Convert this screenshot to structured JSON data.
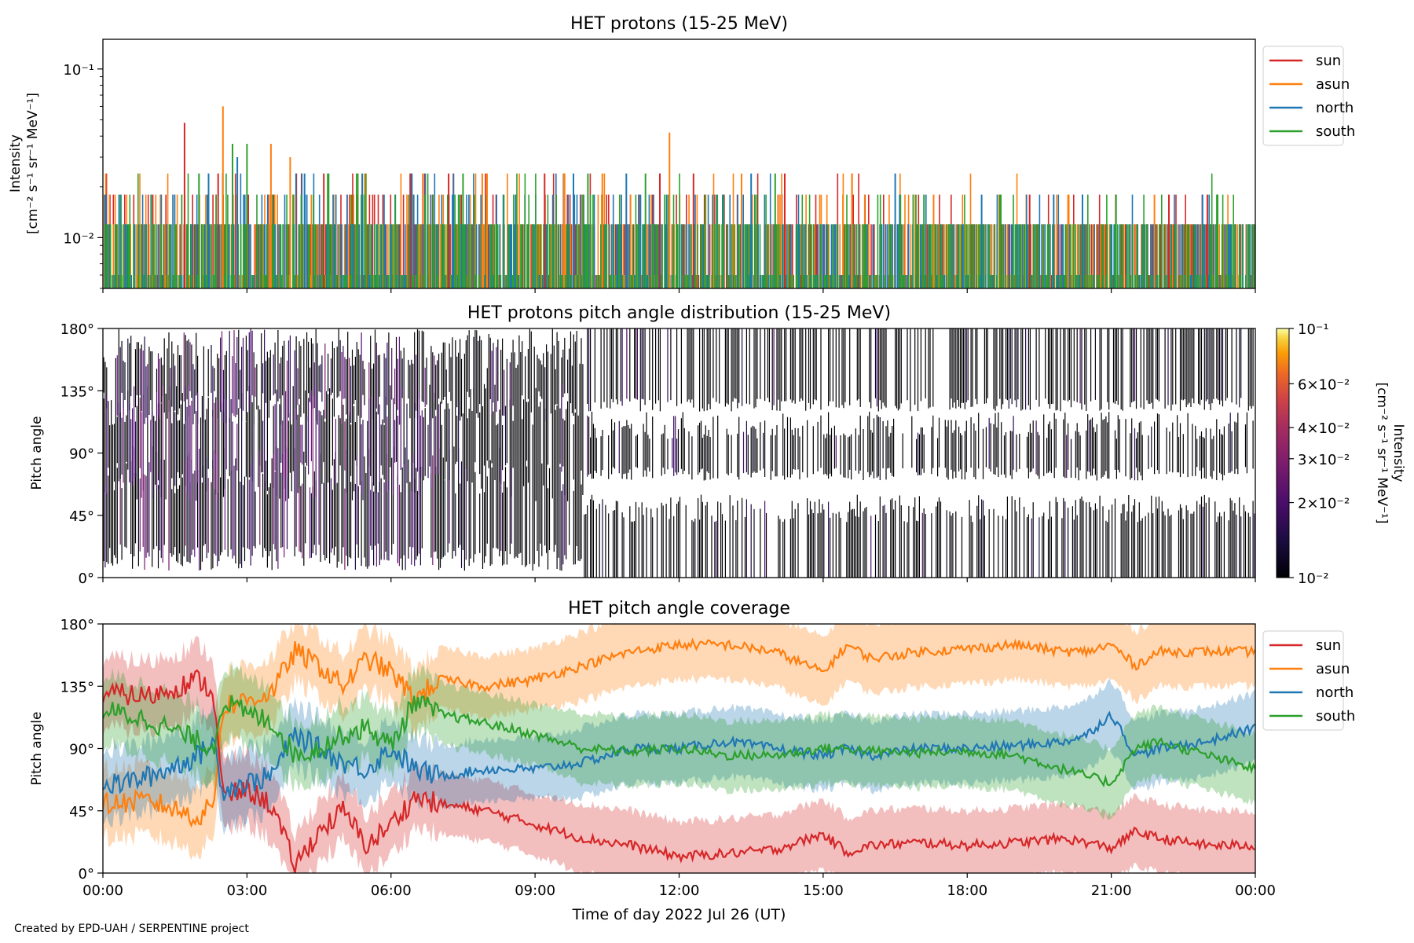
{
  "footer": {
    "credit": "Created by EPD-UAH / SERPENTINE project"
  },
  "chart_data": [
    {
      "type": "line",
      "title": "HET protons (15-25 MeV)",
      "ylabel_line1": "Intensity",
      "ylabel_line2": "[cm⁻² s⁻¹ sr⁻¹ MeV⁻¹]",
      "yscale": "log",
      "ylim": [
        0.005,
        0.15
      ],
      "yticks": [
        {
          "value": 0.01,
          "label": "10⁻²"
        },
        {
          "value": 0.1,
          "label": "10⁻¹"
        }
      ],
      "legend_position": "top-right-outside",
      "x_range_hours": [
        0,
        24
      ],
      "levels": [
        0.006,
        0.012,
        0.018,
        0.024,
        0.03
      ],
      "series": [
        {
          "name": "sun",
          "color": "#d62728",
          "spikes": [
            [
              1.7,
              0.048
            ],
            [
              2.4,
              0.024
            ],
            [
              4.6,
              0.024
            ],
            [
              6.4,
              0.024
            ],
            [
              7.2,
              0.024
            ],
            [
              9.2,
              0.024
            ],
            [
              11.6,
              0.024
            ],
            [
              12.3,
              0.024
            ],
            [
              14.2,
              0.024
            ],
            [
              15.6,
              0.024
            ],
            [
              19.3,
              0.018
            ],
            [
              22.2,
              0.018
            ],
            [
              23.0,
              0.018
            ]
          ]
        },
        {
          "name": "asun",
          "color": "#ff7f0e",
          "spikes": [
            [
              2.5,
              0.06
            ],
            [
              3.5,
              0.036
            ],
            [
              3.9,
              0.03
            ],
            [
              7.9,
              0.024
            ],
            [
              8.0,
              0.024
            ],
            [
              9.6,
              0.024
            ],
            [
              10.4,
              0.024
            ],
            [
              11.8,
              0.042
            ],
            [
              13.3,
              0.024
            ],
            [
              15.6,
              0.024
            ],
            [
              17.3,
              0.018
            ],
            [
              20.1,
              0.018
            ],
            [
              21.9,
              0.018
            ]
          ]
        },
        {
          "name": "north",
          "color": "#1f77b4",
          "spikes": [
            [
              2.2,
              0.024
            ],
            [
              2.8,
              0.03
            ],
            [
              4.2,
              0.024
            ],
            [
              5.4,
              0.024
            ],
            [
              9.8,
              0.024
            ],
            [
              10.9,
              0.024
            ],
            [
              13.5,
              0.024
            ],
            [
              16.5,
              0.024
            ],
            [
              18.3,
              0.018
            ],
            [
              19.8,
              0.018
            ],
            [
              20.4,
              0.018
            ],
            [
              22.9,
              0.018
            ]
          ]
        },
        {
          "name": "south",
          "color": "#2ca02c",
          "spikes": [
            [
              2.0,
              0.024
            ],
            [
              2.7,
              0.036
            ],
            [
              3.0,
              0.036
            ],
            [
              4.7,
              0.024
            ],
            [
              7.5,
              0.024
            ],
            [
              10.1,
              0.024
            ],
            [
              11.3,
              0.024
            ],
            [
              14.0,
              0.024
            ],
            [
              17.1,
              0.018
            ],
            [
              18.7,
              0.018
            ],
            [
              21.1,
              0.018
            ],
            [
              23.2,
              0.018
            ]
          ]
        }
      ]
    },
    {
      "type": "heatmap",
      "title": "HET protons pitch angle distribution (15-25 MeV)",
      "ylabel": "Pitch angle",
      "ylim": [
        0,
        180
      ],
      "yticks": [
        "0°",
        "45°",
        "90°",
        "135°",
        "180°"
      ],
      "colorbar": {
        "scale": "log",
        "range": [
          0.01,
          0.1
        ],
        "colormap": "inferno",
        "label_line1": "Intensity",
        "label_line2": "[cm⁻² s⁻¹ sr⁻¹ MeV⁻¹]",
        "ticks": [
          {
            "value": 0.01,
            "label": "10⁻²"
          },
          {
            "value": 0.02,
            "label": "2×10⁻²"
          },
          {
            "value": 0.03,
            "label": "3×10⁻²"
          },
          {
            "value": 0.04,
            "label": "4×10⁻²"
          },
          {
            "value": 0.06,
            "label": "6×10⁻²"
          },
          {
            "value": 0.1,
            "label": "10⁻¹"
          }
        ]
      },
      "x_range_hours": [
        0,
        24
      ]
    },
    {
      "type": "area",
      "title": "HET pitch angle coverage",
      "ylabel": "Pitch angle",
      "xlabel": "Time of day 2022 Jul 26 (UT)",
      "ylim": [
        0,
        180
      ],
      "yticks": [
        "0°",
        "45°",
        "90°",
        "135°",
        "180°"
      ],
      "xticks": [
        "00:00",
        "03:00",
        "06:00",
        "09:00",
        "12:00",
        "15:00",
        "18:00",
        "21:00",
        "00:00"
      ],
      "legend_position": "top-right-outside",
      "x_hours": [
        0,
        1,
        2,
        2.3,
        2.5,
        3,
        3.5,
        4,
        4.5,
        5,
        5.5,
        6,
        6.5,
        7,
        8,
        9,
        10,
        11,
        12,
        13,
        14,
        15,
        15.5,
        16,
        17,
        18,
        19,
        20,
        20.5,
        21,
        21.5,
        22,
        23,
        24
      ],
      "series": [
        {
          "name": "sun",
          "color": "#d62728",
          "values": [
            130,
            128,
            140,
            130,
            55,
            60,
            50,
            5,
            30,
            45,
            20,
            35,
            55,
            50,
            45,
            35,
            25,
            20,
            12,
            14,
            17,
            28,
            15,
            20,
            22,
            20,
            22,
            25,
            22,
            18,
            30,
            25,
            20,
            20
          ],
          "halfwidth": [
            25,
            25,
            25,
            25,
            25,
            25,
            25,
            22,
            22,
            22,
            22,
            22,
            22,
            22,
            22,
            22,
            25,
            25,
            25,
            25,
            25,
            25,
            25,
            25,
            25,
            25,
            25,
            25,
            25,
            25,
            25,
            25,
            25,
            25
          ]
        },
        {
          "name": "asun",
          "color": "#ff7f0e",
          "values": [
            50,
            52,
            40,
            50,
            120,
            125,
            130,
            160,
            150,
            135,
            155,
            145,
            125,
            140,
            135,
            140,
            150,
            160,
            165,
            165,
            160,
            145,
            165,
            155,
            160,
            162,
            165,
            160,
            160,
            165,
            150,
            160,
            160,
            160
          ],
          "halfwidth": [
            25,
            25,
            25,
            25,
            25,
            25,
            25,
            22,
            22,
            22,
            22,
            22,
            22,
            22,
            22,
            22,
            25,
            25,
            25,
            25,
            25,
            25,
            25,
            25,
            25,
            25,
            25,
            25,
            25,
            25,
            25,
            25,
            25,
            25
          ]
        },
        {
          "name": "north",
          "color": "#1f77b4",
          "values": [
            62,
            70,
            85,
            95,
            60,
            65,
            70,
            100,
            90,
            80,
            75,
            90,
            75,
            70,
            75,
            75,
            80,
            90,
            90,
            95,
            90,
            85,
            90,
            85,
            90,
            90,
            92,
            95,
            100,
            115,
            85,
            90,
            95,
            105
          ],
          "halfwidth": [
            25,
            25,
            25,
            25,
            25,
            25,
            25,
            22,
            22,
            22,
            22,
            22,
            22,
            22,
            22,
            22,
            25,
            25,
            25,
            25,
            25,
            25,
            25,
            25,
            25,
            25,
            25,
            25,
            25,
            25,
            25,
            25,
            25,
            25
          ]
        },
        {
          "name": "south",
          "color": "#2ca02c",
          "values": [
            118,
            110,
            95,
            90,
            125,
            115,
            110,
            85,
            90,
            100,
            105,
            92,
            125,
            115,
            108,
            100,
            90,
            88,
            90,
            85,
            85,
            90,
            90,
            88,
            87,
            88,
            85,
            75,
            70,
            65,
            90,
            95,
            85,
            75
          ],
          "halfwidth": [
            25,
            25,
            25,
            25,
            25,
            25,
            25,
            22,
            22,
            22,
            22,
            22,
            22,
            22,
            22,
            22,
            25,
            25,
            25,
            25,
            25,
            25,
            25,
            25,
            25,
            25,
            25,
            25,
            25,
            25,
            25,
            25,
            25,
            25
          ]
        }
      ]
    }
  ]
}
